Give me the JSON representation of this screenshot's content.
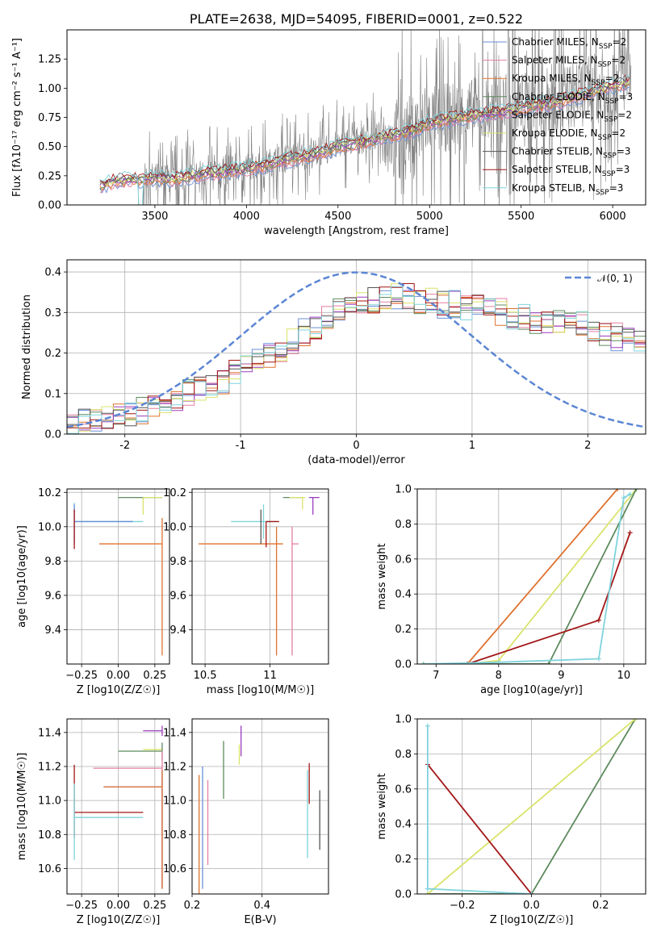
{
  "chart_data": [
    {
      "id": "spectrum",
      "type": "line",
      "title": "PLATE=2638, MJD=54095, FIBERID=0001, z=0.522",
      "xlabel": "wavelength [Angstrom, rest frame]",
      "ylabel": "Flux [fλ10⁻¹⁷ erg cm⁻² s⁻¹ A⁻¹]",
      "xlim": [
        3020,
        6180
      ],
      "ylim": [
        0,
        1.5
      ],
      "xticks": [
        3500,
        4000,
        4500,
        5000,
        5500,
        6000
      ],
      "yticks": [
        0.0,
        0.25,
        0.5,
        0.75,
        1.0,
        1.25
      ],
      "grid": false,
      "legend_position": "top-right",
      "data_trace": {
        "color": "#808080",
        "x": [
          3200,
          3300,
          3420,
          3500,
          3600,
          3700,
          3800,
          3900,
          4000,
          4100,
          4200,
          4300,
          4400,
          4500,
          4600,
          4700,
          4800,
          4900,
          5000,
          5100,
          5200,
          5300,
          5400,
          5500,
          5600,
          5700,
          5800,
          5900,
          6000,
          6100
        ],
        "y": [
          0.18,
          0.22,
          0.23,
          0.24,
          0.22,
          0.26,
          0.28,
          0.3,
          0.33,
          0.35,
          0.4,
          0.42,
          0.45,
          0.52,
          0.55,
          0.58,
          0.62,
          0.65,
          0.72,
          0.75,
          0.78,
          0.8,
          0.82,
          0.85,
          0.88,
          0.9,
          0.95,
          1.0,
          1.05,
          1.1
        ]
      },
      "series": [
        {
          "name": "Chabrier MILES, N_SSP=2",
          "label_main": "Chabrier MILES, N",
          "label_sub": "SSP",
          "label_tail": "=2",
          "color": "#6b8ed6"
        },
        {
          "name": "Salpeter MILES, N_SSP=2",
          "label_main": "Salpeter MILES, N",
          "label_sub": "SSP",
          "label_tail": "=2",
          "color": "#e57fa0"
        },
        {
          "name": "Kroupa MILES, N_SSP=2",
          "label_main": "Kroupa MILES, N",
          "label_sub": "SSP",
          "label_tail": "=2",
          "color": "#e0722e"
        },
        {
          "name": "Chabrier ELODIE, N_SSP=3",
          "label_main": "Chabrier ELODIE, N",
          "label_sub": "SSP",
          "label_tail": "=3",
          "color": "#5e8a5e"
        },
        {
          "name": "Salpeter ELODIE, N_SSP=2",
          "label_main": "Salpeter ELODIE, N",
          "label_sub": "SSP",
          "label_tail": "=2",
          "color": "#9b3dbf"
        },
        {
          "name": "Kroupa ELODIE, N_SSP=2",
          "label_main": "Kroupa ELODIE, N",
          "label_sub": "SSP",
          "label_tail": "=2",
          "color": "#d9e36b"
        },
        {
          "name": "Chabrier STELIB, N_SSP=3",
          "label_main": "Chabrier STELIB, N",
          "label_sub": "SSP",
          "label_tail": "=3",
          "color": "#555555"
        },
        {
          "name": "Salpeter STELIB, N_SSP=3",
          "label_main": "Salpeter STELIB, N",
          "label_sub": "SSP",
          "label_tail": "=3",
          "color": "#a31616"
        },
        {
          "name": "Kroupa STELIB, N_SSP=3",
          "label_main": "Kroupa STELIB, N",
          "label_sub": "SSP",
          "label_tail": "=3",
          "color": "#7fd3dc"
        }
      ],
      "model_x": [
        3200,
        3300,
        3420,
        3500,
        3600,
        3700,
        3800,
        3900,
        4000,
        4100,
        4200,
        4300,
        4400,
        4500,
        4600,
        4700,
        4800,
        4900,
        5000,
        5100,
        5200,
        5300,
        5400,
        5500,
        5600,
        5700,
        5800,
        5900,
        6000,
        6100
      ],
      "model_y": [
        0.17,
        0.21,
        0.22,
        0.23,
        0.22,
        0.25,
        0.27,
        0.29,
        0.31,
        0.34,
        0.38,
        0.41,
        0.44,
        0.5,
        0.53,
        0.56,
        0.6,
        0.63,
        0.7,
        0.73,
        0.76,
        0.78,
        0.8,
        0.83,
        0.86,
        0.88,
        0.93,
        0.97,
        1.02,
        1.06
      ]
    },
    {
      "id": "residuals",
      "type": "step-histogram",
      "xlabel": "(data-model)/error",
      "ylabel": "Normed distribution",
      "xlim": [
        -2.5,
        2.5
      ],
      "ylim": [
        0,
        0.43
      ],
      "xticks": [
        -2,
        -1,
        0,
        1,
        2
      ],
      "yticks": [
        0.0,
        0.1,
        0.2,
        0.3,
        0.4
      ],
      "grid": true,
      "legend_position": "top-right",
      "gaussian_label": "𝒩(0, 1)",
      "gaussian_color": "#5b86d4",
      "bin_edges_start": -2.5,
      "bin_width": 0.1,
      "base_values": [
        0.02,
        0.03,
        0.03,
        0.04,
        0.05,
        0.05,
        0.06,
        0.07,
        0.08,
        0.09,
        0.1,
        0.11,
        0.12,
        0.13,
        0.15,
        0.16,
        0.18,
        0.19,
        0.21,
        0.23,
        0.25,
        0.26,
        0.28,
        0.3,
        0.31,
        0.32,
        0.33,
        0.33,
        0.34,
        0.34,
        0.33,
        0.33,
        0.32,
        0.32,
        0.31,
        0.31,
        0.3,
        0.3,
        0.29,
        0.29,
        0.28,
        0.28,
        0.28,
        0.27,
        0.27,
        0.26,
        0.25,
        0.24,
        0.23,
        0.22,
        0.21,
        0.2,
        0.19,
        0.18,
        0.17,
        0.16,
        0.15,
        0.14,
        0.13,
        0.12,
        0.11,
        0.11,
        0.1,
        0.1,
        0.09,
        0.09,
        0.09,
        0.08,
        0.08,
        0.08
      ]
    },
    {
      "id": "age-vs-Z",
      "type": "errorbar",
      "xlabel": "Z [log10(Z/Z☉)]",
      "ylabel": "age [log10(age/yr)]",
      "xlim": [
        -0.35,
        0.35
      ],
      "ylim": [
        9.2,
        10.22
      ],
      "xticks": [
        -0.25,
        0.0,
        0.25
      ],
      "xtick_labels": [
        "−0.25",
        "0.00",
        "0.25"
      ],
      "yticks": [
        9.4,
        9.6,
        9.8,
        10.0,
        10.2
      ],
      "grid": true,
      "points": [
        {
          "color": "#5e8a5e",
          "x": 0.0,
          "y": 10.17,
          "xerr": [
            0.0,
            0.3
          ],
          "yerr": [
            0,
            0
          ]
        },
        {
          "color": "#d9e36b",
          "x": 0.17,
          "y": 10.17,
          "xerr": [
            0,
            0.13
          ],
          "yerr": [
            0.1,
            0
          ]
        },
        {
          "color": "#7fd3dc",
          "x": -0.3,
          "y": 10.03,
          "xerr": [
            0,
            0.47
          ],
          "yerr": [
            0.11,
            0.11
          ]
        },
        {
          "color": "#6b8ed6",
          "x": -0.3,
          "y": 10.03,
          "xerr": [
            0,
            0.4
          ],
          "yerr": [
            0.13,
            0.1
          ]
        },
        {
          "color": "#e0722e",
          "x": 0.3,
          "y": 9.9,
          "xerr": [
            0.43,
            0
          ],
          "yerr": [
            0.65,
            0.15
          ]
        },
        {
          "color": "#a31616",
          "x": -0.3,
          "y": 10.0,
          "xerr": [
            0,
            0
          ],
          "yerr": [
            0.13,
            0.1
          ]
        }
      ]
    },
    {
      "id": "age-vs-mass",
      "type": "errorbar",
      "xlabel": "mass [log10(M/M☉)]",
      "ylabel": "",
      "xlim": [
        10.4,
        11.45
      ],
      "ylim": [
        9.2,
        10.22
      ],
      "xticks": [
        10.5,
        11.0
      ],
      "yticks": [
        9.4,
        9.6,
        9.8,
        10.0,
        10.2
      ],
      "grid": true,
      "points": [
        {
          "color": "#e0722e",
          "x": 11.05,
          "y": 9.9,
          "xerr": [
            0.6,
            0.05
          ],
          "yerr": [
            0.65,
            0.1
          ]
        },
        {
          "color": "#e57fa0",
          "x": 11.17,
          "y": 9.9,
          "xerr": [
            0,
            0.05
          ],
          "yerr": [
            0.65,
            0.1
          ]
        },
        {
          "color": "#7fd3dc",
          "x": 10.95,
          "y": 10.03,
          "xerr": [
            0.25,
            0.1
          ],
          "yerr": [
            0.1,
            0.1
          ]
        },
        {
          "color": "#5e8a5e",
          "x": 11.1,
          "y": 10.17,
          "xerr": [
            0,
            0.15
          ],
          "yerr": [
            0,
            0
          ]
        },
        {
          "color": "#9b3dbf",
          "x": 11.33,
          "y": 10.17,
          "xerr": [
            0.03,
            0.05
          ],
          "yerr": [
            0.1,
            0
          ]
        },
        {
          "color": "#d9e36b",
          "x": 11.25,
          "y": 10.17,
          "xerr": [
            0.1,
            0.02
          ],
          "yerr": [
            0.07,
            0
          ]
        },
        {
          "color": "#555555",
          "x": 10.93,
          "y": 10.0,
          "xerr": [
            0,
            0
          ],
          "yerr": [
            0.1,
            0.1
          ]
        },
        {
          "color": "#a31616",
          "x": 10.97,
          "y": 10.03,
          "xerr": [
            0,
            0.1
          ],
          "yerr": [
            0.15,
            0
          ]
        }
      ]
    },
    {
      "id": "mass-weight-vs-age",
      "type": "line",
      "xlabel": "age [log10(age/yr)]",
      "ylabel": "mass weight",
      "xlim": [
        6.7,
        10.35
      ],
      "ylim": [
        0,
        1
      ],
      "xticks": [
        7,
        8,
        9,
        10
      ],
      "yticks": [
        0.0,
        0.2,
        0.4,
        0.6,
        0.8,
        1.0
      ],
      "grid": true,
      "series": [
        {
          "color": "#e0722e",
          "x": [
            6.8,
            7.5,
            9.9
          ],
          "y": [
            0.0,
            0.0,
            1.0
          ]
        },
        {
          "color": "#d9e36b",
          "x": [
            6.8,
            7.5,
            8.0,
            10.2
          ],
          "y": [
            0.0,
            0.0,
            0.02,
            1.0
          ]
        },
        {
          "color": "#5e8a5e",
          "x": [
            6.8,
            8.8,
            10.2
          ],
          "y": [
            0.0,
            0.0,
            1.0
          ]
        },
        {
          "color": "#a31616",
          "x": [
            7.5,
            9.6,
            10.1
          ],
          "y": [
            0.0,
            0.25,
            0.75
          ]
        },
        {
          "color": "#7fd3dc",
          "x": [
            6.8,
            8.0,
            9.6,
            10.0,
            10.1
          ],
          "y": [
            0.0,
            0.01,
            0.03,
            0.95,
            0.97
          ]
        }
      ]
    },
    {
      "id": "mass-vs-Z",
      "type": "errorbar",
      "xlabel": "Z [log10(Z/Z☉)]",
      "ylabel": "mass [log10(M/M☉)]",
      "xlim": [
        -0.35,
        0.35
      ],
      "ylim": [
        10.45,
        11.48
      ],
      "xticks": [
        -0.25,
        0.0,
        0.25
      ],
      "xtick_labels": [
        "−0.25",
        "0.00",
        "0.25"
      ],
      "yticks": [
        10.6,
        10.8,
        11.0,
        11.2,
        11.4
      ],
      "grid": true,
      "points": [
        {
          "color": "#9b3dbf",
          "x": 0.3,
          "y": 11.41,
          "xerr": [
            0.13,
            0
          ],
          "yerr": [
            0.03,
            0.03
          ]
        },
        {
          "color": "#d9e36b",
          "x": 0.3,
          "y": 11.3,
          "xerr": [
            0.13,
            0
          ],
          "yerr": [
            0,
            0
          ]
        },
        {
          "color": "#5e8a5e",
          "x": 0.3,
          "y": 11.29,
          "xerr": [
            0.3,
            0
          ],
          "yerr": [
            0.05,
            0.05
          ]
        },
        {
          "color": "#e57fa0",
          "x": 0.3,
          "y": 11.19,
          "xerr": [
            0.47,
            0
          ],
          "yerr": [
            0.7,
            0.1
          ]
        },
        {
          "color": "#6b8ed6",
          "x": 0.3,
          "y": 11.08,
          "xerr": [
            0.4,
            0
          ],
          "yerr": [
            0.6,
            0.1
          ]
        },
        {
          "color": "#e0722e",
          "x": 0.3,
          "y": 11.08,
          "xerr": [
            0.4,
            0
          ],
          "yerr": [
            0.6,
            0.1
          ]
        },
        {
          "color": "#a31616",
          "x": -0.3,
          "y": 10.93,
          "xerr": [
            0,
            0.47
          ],
          "yerr": [
            0.15,
            0.28
          ]
        },
        {
          "color": "#7fd3dc",
          "x": -0.3,
          "y": 10.9,
          "xerr": [
            0,
            0.47
          ],
          "yerr": [
            0.25,
            0.2
          ]
        }
      ]
    },
    {
      "id": "mass-vs-ebv",
      "type": "errorbar",
      "xlabel": "E(B-V)",
      "ylabel": "",
      "xlim": [
        0.2,
        0.59
      ],
      "ylim": [
        10.45,
        11.48
      ],
      "xticks": [
        0.2,
        0.4
      ],
      "yticks": [
        10.6,
        10.8,
        11.0,
        11.2,
        11.4
      ],
      "grid": true,
      "points": [
        {
          "color": "#6b8ed6",
          "x": 0.23,
          "y": 11.0,
          "xerr": [
            0,
            0
          ],
          "yerr": [
            0.52,
            0.2
          ]
        },
        {
          "color": "#e57fa0",
          "x": 0.245,
          "y": 10.9,
          "xerr": [
            0,
            0
          ],
          "yerr": [
            0.28,
            0.22
          ]
        },
        {
          "color": "#e0722e",
          "x": 0.22,
          "y": 10.85,
          "xerr": [
            0,
            0
          ],
          "yerr": [
            0.4,
            0.3
          ]
        },
        {
          "color": "#5e8a5e",
          "x": 0.29,
          "y": 11.18,
          "xerr": [
            0,
            0
          ],
          "yerr": [
            0.17,
            0.17
          ]
        },
        {
          "color": "#d9e36b",
          "x": 0.335,
          "y": 11.27,
          "xerr": [
            0,
            0
          ],
          "yerr": [
            0.06,
            0.06
          ]
        },
        {
          "color": "#9b3dbf",
          "x": 0.34,
          "y": 11.35,
          "xerr": [
            0,
            0
          ],
          "yerr": [
            0.09,
            0.09
          ]
        },
        {
          "color": "#7fd3dc",
          "x": 0.53,
          "y": 10.92,
          "xerr": [
            0,
            0
          ],
          "yerr": [
            0.26,
            0.26
          ]
        },
        {
          "color": "#a31616",
          "x": 0.535,
          "y": 11.1,
          "xerr": [
            0,
            0
          ],
          "yerr": [
            0.12,
            0.12
          ]
        },
        {
          "color": "#555555",
          "x": 0.565,
          "y": 10.88,
          "xerr": [
            0,
            0
          ],
          "yerr": [
            0.17,
            0.18
          ]
        }
      ]
    },
    {
      "id": "mass-weight-vs-Z",
      "type": "line",
      "xlabel": "Z [log10(Z/Z☉)]",
      "ylabel": "mass weight",
      "xlim": [
        -0.33,
        0.33
      ],
      "ylim": [
        0,
        1
      ],
      "xticks": [
        -0.2,
        0.0,
        0.2
      ],
      "xtick_labels": [
        "−0.2",
        "0.0",
        "0.2"
      ],
      "yticks": [
        0.0,
        0.2,
        0.4,
        0.6,
        0.8,
        1.0
      ],
      "grid": true,
      "series": [
        {
          "color": "#5e8a5e",
          "x": [
            -0.3,
            0.0,
            0.3
          ],
          "y": [
            0.0,
            0.0,
            1.0
          ]
        },
        {
          "color": "#d9e36b",
          "x": [
            -0.3,
            0.3
          ],
          "y": [
            0.0,
            1.0
          ]
        },
        {
          "color": "#a31616",
          "x": [
            -0.3,
            0.0
          ],
          "y": [
            0.74,
            0.0
          ]
        },
        {
          "color": "#7fd3dc",
          "x": [
            -0.3,
            -0.3,
            0.0
          ],
          "y": [
            0.96,
            0.03,
            0.0
          ]
        }
      ]
    }
  ]
}
